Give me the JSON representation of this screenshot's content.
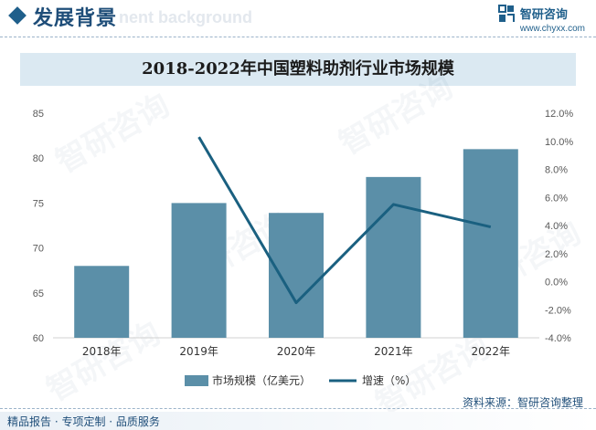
{
  "header": {
    "section_title": "发展背景",
    "section_watermark": "nent background",
    "logo_name": "智研咨询",
    "logo_url": "www.chyxx.com"
  },
  "watermark_text": "智研咨询",
  "footer": {
    "source": "资料来源：智研咨询整理",
    "tagline": "精品报告 · 专项定制 · 品质服务"
  },
  "colors": {
    "bar": "#5b8fa8",
    "line": "#1a6080",
    "title_band": "#dbe9f2",
    "brand": "#1f4e79"
  },
  "chart_data": {
    "type": "bar",
    "title": "2018-2022年中国塑料助剂行业市场规模",
    "categories": [
      "2018年",
      "2019年",
      "2020年",
      "2021年",
      "2022年"
    ],
    "series": [
      {
        "name": "市场规模（亿美元）",
        "type": "bar",
        "axis": "left",
        "values": [
          68.0,
          75.0,
          73.9,
          77.9,
          81.0
        ]
      },
      {
        "name": "增速（%）",
        "type": "line",
        "axis": "right",
        "values": [
          null,
          10.3,
          -1.5,
          5.5,
          3.9
        ]
      }
    ],
    "y_left": {
      "min": 60,
      "max": 85,
      "step": 5,
      "ticks": [
        "60",
        "65",
        "70",
        "75",
        "80",
        "85"
      ]
    },
    "y_right": {
      "min": -4.0,
      "max": 12.0,
      "step": 2.0,
      "ticks": [
        "-4.0%",
        "-2.0%",
        "0.0%",
        "2.0%",
        "4.0%",
        "6.0%",
        "8.0%",
        "10.0%",
        "12.0%"
      ]
    },
    "grid": false,
    "legend_position": "bottom"
  }
}
